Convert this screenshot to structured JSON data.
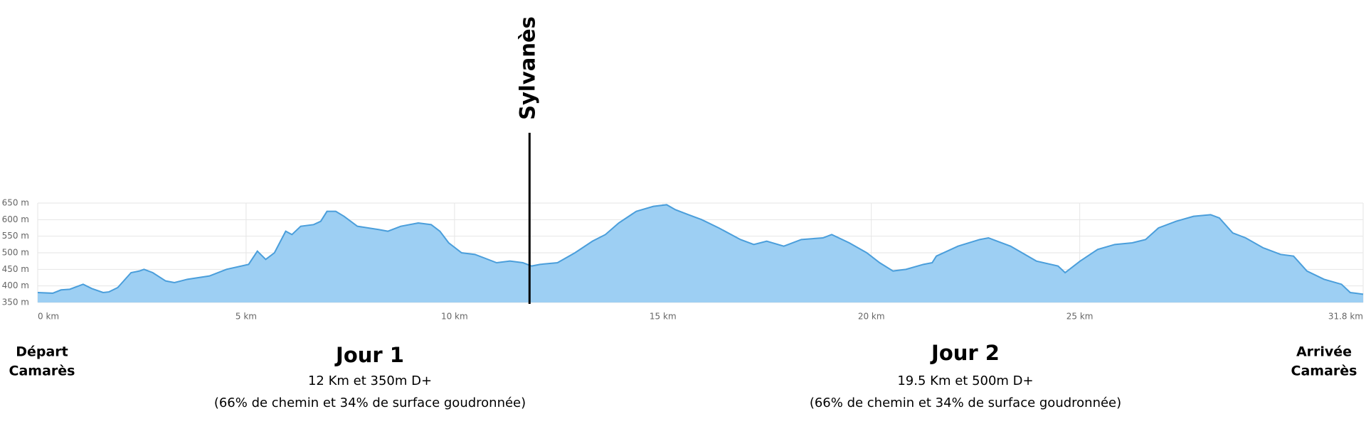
{
  "chart_data": {
    "type": "area",
    "x": [
      0,
      0.36,
      0.56,
      0.77,
      1.09,
      1.3,
      1.57,
      1.71,
      1.92,
      2.24,
      2.44,
      2.55,
      2.76,
      3.07,
      3.28,
      3.59,
      4.12,
      4.53,
      5.06,
      5.27,
      5.47,
      5.68,
      5.95,
      6.1,
      6.31,
      6.62,
      6.79,
      6.94,
      7.15,
      7.35,
      7.67,
      8.19,
      8.4,
      8.71,
      9.13,
      9.44,
      9.65,
      9.86,
      10.17,
      10.49,
      10.7,
      11.01,
      11.33,
      11.64,
      11.85,
      12.05,
      12.47,
      12.89,
      13.31,
      13.62,
      13.94,
      14.36,
      14.77,
      15.09,
      15.3,
      15.61,
      15.93,
      16.34,
      16.86,
      17.18,
      17.49,
      17.9,
      18.32,
      18.84,
      19.05,
      19.47,
      19.89,
      20.2,
      20.52,
      20.83,
      21.25,
      21.46,
      21.56,
      22.08,
      22.6,
      22.81,
      23.34,
      23.96,
      24.48,
      24.65,
      25.01,
      25.43,
      25.84,
      26.26,
      26.58,
      26.89,
      27.31,
      27.73,
      28.14,
      28.35,
      28.67,
      28.98,
      29.4,
      29.82,
      30.13,
      30.45,
      30.86,
      31.28,
      31.49,
      31.8
    ],
    "series": [
      {
        "color": "#9dcff3",
        "line_color": "#4a9edb",
        "values": [
          380,
          378,
          388,
          390,
          405,
          392,
          380,
          382,
          395,
          440,
          445,
          450,
          440,
          415,
          410,
          420,
          430,
          450,
          465,
          505,
          480,
          500,
          565,
          555,
          580,
          585,
          595,
          625,
          625,
          610,
          580,
          570,
          565,
          580,
          590,
          585,
          565,
          530,
          500,
          495,
          485,
          470,
          475,
          470,
          460,
          465,
          470,
          500,
          535,
          555,
          590,
          625,
          640,
          645,
          630,
          615,
          600,
          575,
          540,
          525,
          535,
          520,
          540,
          545,
          555,
          530,
          500,
          470,
          445,
          450,
          465,
          470,
          490,
          520,
          540,
          545,
          520,
          475,
          460,
          440,
          475,
          510,
          525,
          530,
          540,
          575,
          595,
          610,
          615,
          605,
          560,
          545,
          515,
          495,
          490,
          445,
          420,
          405,
          380,
          375
        ]
      }
    ],
    "xlim": [
      0,
      31.8
    ],
    "xticks": [
      {
        "value": 0,
        "label": "0 km"
      },
      {
        "value": 5,
        "label": "5 km"
      },
      {
        "value": 10,
        "label": "10 km"
      },
      {
        "value": 15,
        "label": "15 km"
      },
      {
        "value": 20,
        "label": "20 km"
      },
      {
        "value": 25,
        "label": "25 km"
      },
      {
        "value": 31.8,
        "label": "31.8 km"
      }
    ],
    "ylim": [
      350,
      650
    ],
    "yticks": [
      {
        "value": 350,
        "label": "350 m"
      },
      {
        "value": 400,
        "label": "400 m"
      },
      {
        "value": 450,
        "label": "450 m"
      },
      {
        "value": 500,
        "label": "500 m"
      },
      {
        "value": 550,
        "label": "550 m"
      },
      {
        "value": 600,
        "label": "600 m"
      },
      {
        "value": 650,
        "label": "650 m"
      }
    ],
    "grid": true,
    "annotations": [
      {
        "label": "Sylvanès",
        "x": 11.8
      }
    ]
  },
  "labels": {
    "start": [
      "Départ",
      "Camarès"
    ],
    "end": [
      "Arrivée",
      "Camarès"
    ],
    "days": [
      {
        "title": "Jour 1",
        "distance": "12 Km et 350m D+",
        "surface": "(66% de chemin et 34% de surface goudronnée)"
      },
      {
        "title": "Jour 2",
        "distance": "19.5 Km et 500m D+",
        "surface": "(66% de chemin et 34% de surface goudronnée)"
      }
    ]
  }
}
